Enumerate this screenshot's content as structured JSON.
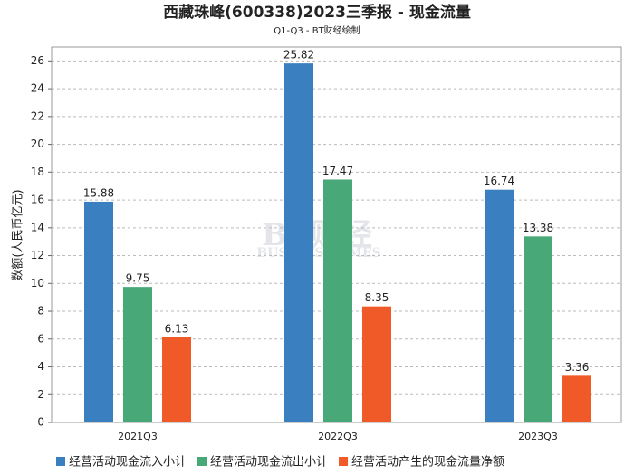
{
  "chart_data": {
    "type": "bar",
    "title": "西藏珠峰(600338)2023三季报 - 现金流量",
    "subtitle": "Q1-Q3 - BT财经绘制",
    "y_label": "数额(人民币亿元)",
    "watermark": [
      "BT财经",
      "BUSINESSTIMES"
    ],
    "categories": [
      "2021Q3",
      "2022Q3",
      "2023Q3"
    ],
    "series": [
      {
        "name": "经营活动现金流入小计",
        "color": "#3a80c0",
        "values": [
          15.88,
          25.82,
          16.74
        ]
      },
      {
        "name": "经营活动现金流出小计",
        "color": "#48a878",
        "values": [
          9.75,
          17.47,
          13.38
        ]
      },
      {
        "name": "经营活动产生的现金流量净额",
        "color": "#f05a28",
        "values": [
          6.13,
          8.35,
          3.36
        ]
      }
    ],
    "ylim": [
      0,
      27
    ],
    "yticks": [
      0,
      2,
      4,
      6,
      8,
      10,
      12,
      14,
      16,
      18,
      20,
      22,
      24,
      26
    ],
    "grid": true,
    "legend": "bottom"
  }
}
